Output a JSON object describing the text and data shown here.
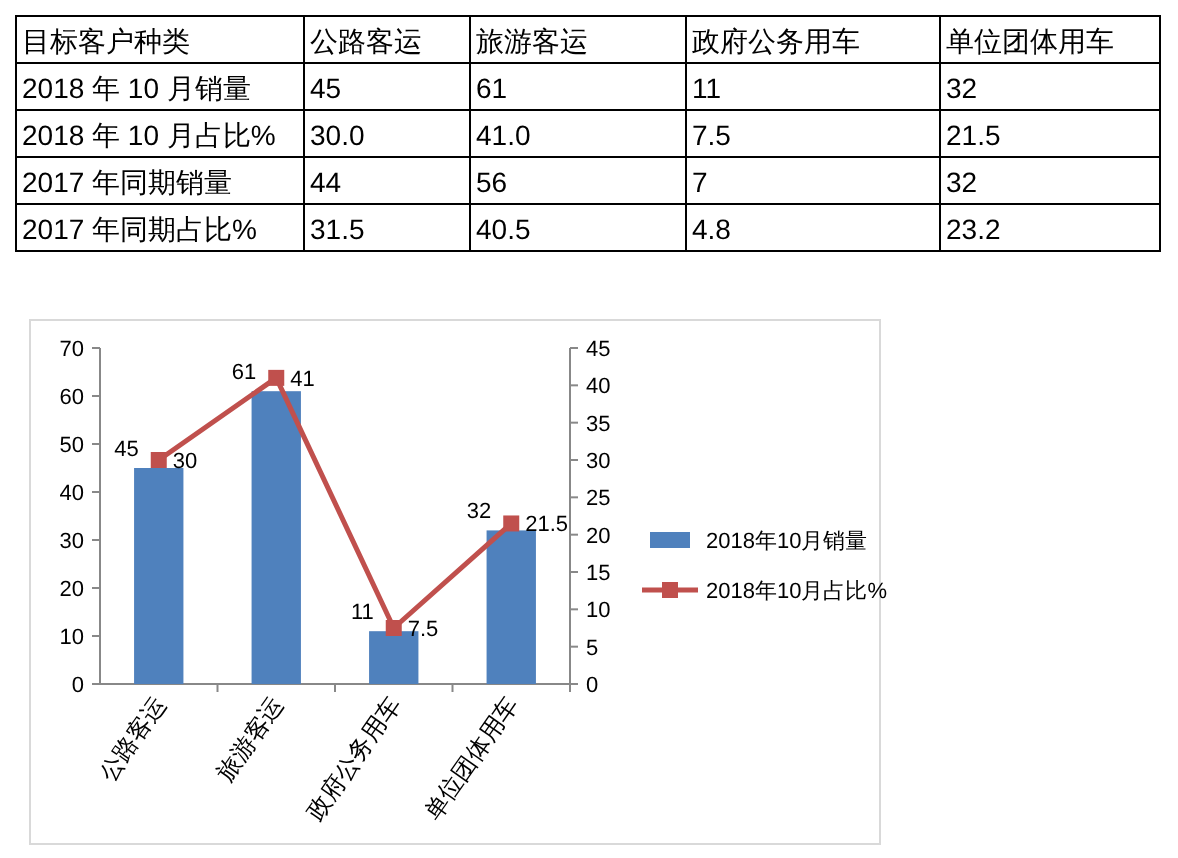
{
  "chart_data": [
    {
      "type": "other",
      "title": "目标客户种类",
      "categories": [
        "公路客运",
        "旅游客运",
        "政府公务用车",
        "单位团体用车"
      ],
      "y_categories": [
        "2018 年 10 月销量",
        "2018 年 10 月占比%",
        "2017 年同期销量",
        "2017 年同期占比%"
      ],
      "cell_labels": [
        [
          "45",
          "61",
          "11",
          "32"
        ],
        [
          "30.0",
          "41.0",
          "7.5",
          "21.5"
        ],
        [
          "44",
          "56",
          "7",
          "32"
        ],
        [
          "31.5",
          "40.5",
          "4.8",
          "23.2"
        ]
      ]
    },
    {
      "type": "bar",
      "categories": [
        "公路客运",
        "旅游客运",
        "政府公务用车",
        "单位团体用车"
      ],
      "series": [
        {
          "name": "2018年10月销量",
          "color": "#4f81bd",
          "values": [
            45,
            61,
            11,
            32
          ]
        },
        {
          "name": "2018年10月占比%",
          "type": "line",
          "axis": "y2",
          "color": "#c0504d",
          "marker": "square",
          "values": [
            30,
            41,
            7.5,
            21.5
          ]
        }
      ],
      "ylim": [
        0,
        70
      ],
      "yticks": [
        0,
        10,
        20,
        30,
        40,
        50,
        60,
        70
      ],
      "y2lim": [
        0,
        45
      ],
      "y2ticks": [
        0,
        5,
        10,
        15,
        20,
        25,
        30,
        35,
        40,
        45
      ],
      "data_labels": true,
      "legend": "right",
      "grid": false
    }
  ]
}
